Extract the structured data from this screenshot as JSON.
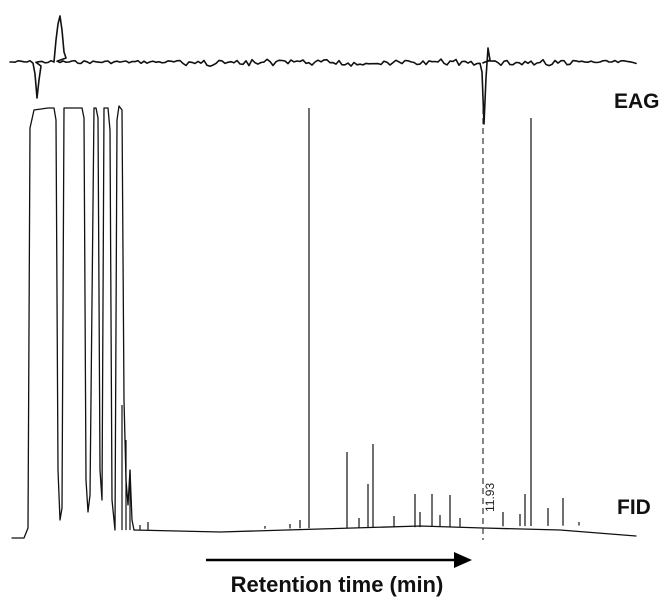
{
  "chart_data": {
    "type": "line",
    "title": "",
    "series": [
      {
        "name": "EAG"
      },
      {
        "name": "FID"
      }
    ],
    "annotations": [
      {
        "text": "11.93"
      }
    ],
    "xlabel": "Retention time (min)",
    "ylabel": "",
    "grid": false,
    "legend": "none"
  }
}
